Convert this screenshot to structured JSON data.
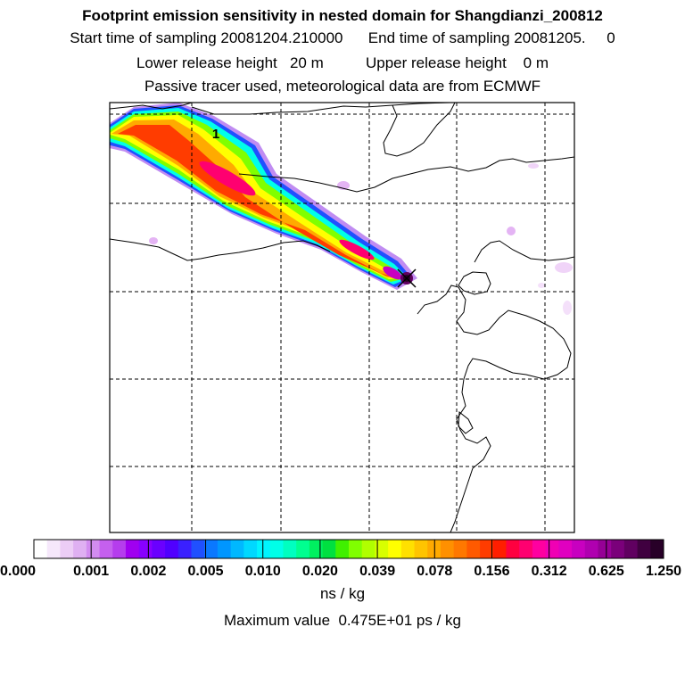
{
  "header": {
    "title": "Footprint emission sensitivity in nested domain for Shangdianzi_200812",
    "sampling_line": "Start time of sampling 20081204.210000      End time of sampling 20081205.     0",
    "release_line": "Lower release height   20 m          Upper release height    0 m",
    "tracer_line": "Passive tracer used, meteorological data are from ECMWF"
  },
  "map": {
    "plume_label": "1",
    "release_marker": "x-marker"
  },
  "colorbar": {
    "tick_labels": [
      "0.000",
      "0.001",
      "0.002",
      "0.005",
      "0.010",
      "0.020",
      "0.039",
      "0.078",
      "0.156",
      "0.312",
      "0.625",
      "1.250"
    ],
    "colors": [
      "#ffffff",
      "#f6e8fb",
      "#eccdf6",
      "#dfb0f2",
      "#d28cf0",
      "#c560ee",
      "#b53ded",
      "#a000f0",
      "#8800ff",
      "#6a00ff",
      "#5000ff",
      "#3a20ff",
      "#2050ff",
      "#0a78ff",
      "#0096ff",
      "#00b8ff",
      "#00d8ff",
      "#00f4ff",
      "#00ffe8",
      "#00ffc0",
      "#00ff90",
      "#00f060",
      "#00e040",
      "#40f000",
      "#80ff00",
      "#b0ff00",
      "#d8ff00",
      "#ffff00",
      "#ffe000",
      "#ffc400",
      "#ffaa00",
      "#ff9000",
      "#ff7800",
      "#ff5a00",
      "#ff3c00",
      "#ff1e00",
      "#ff0040",
      "#ff0070",
      "#ff00a0",
      "#f000b4",
      "#e000c0",
      "#c800c0",
      "#b000b0",
      "#960096",
      "#7a007a",
      "#600060",
      "#400040",
      "#280028"
    ],
    "units_label": "ns / kg",
    "max_value_label": "Maximum value  0.475E+01 ps / kg"
  }
}
